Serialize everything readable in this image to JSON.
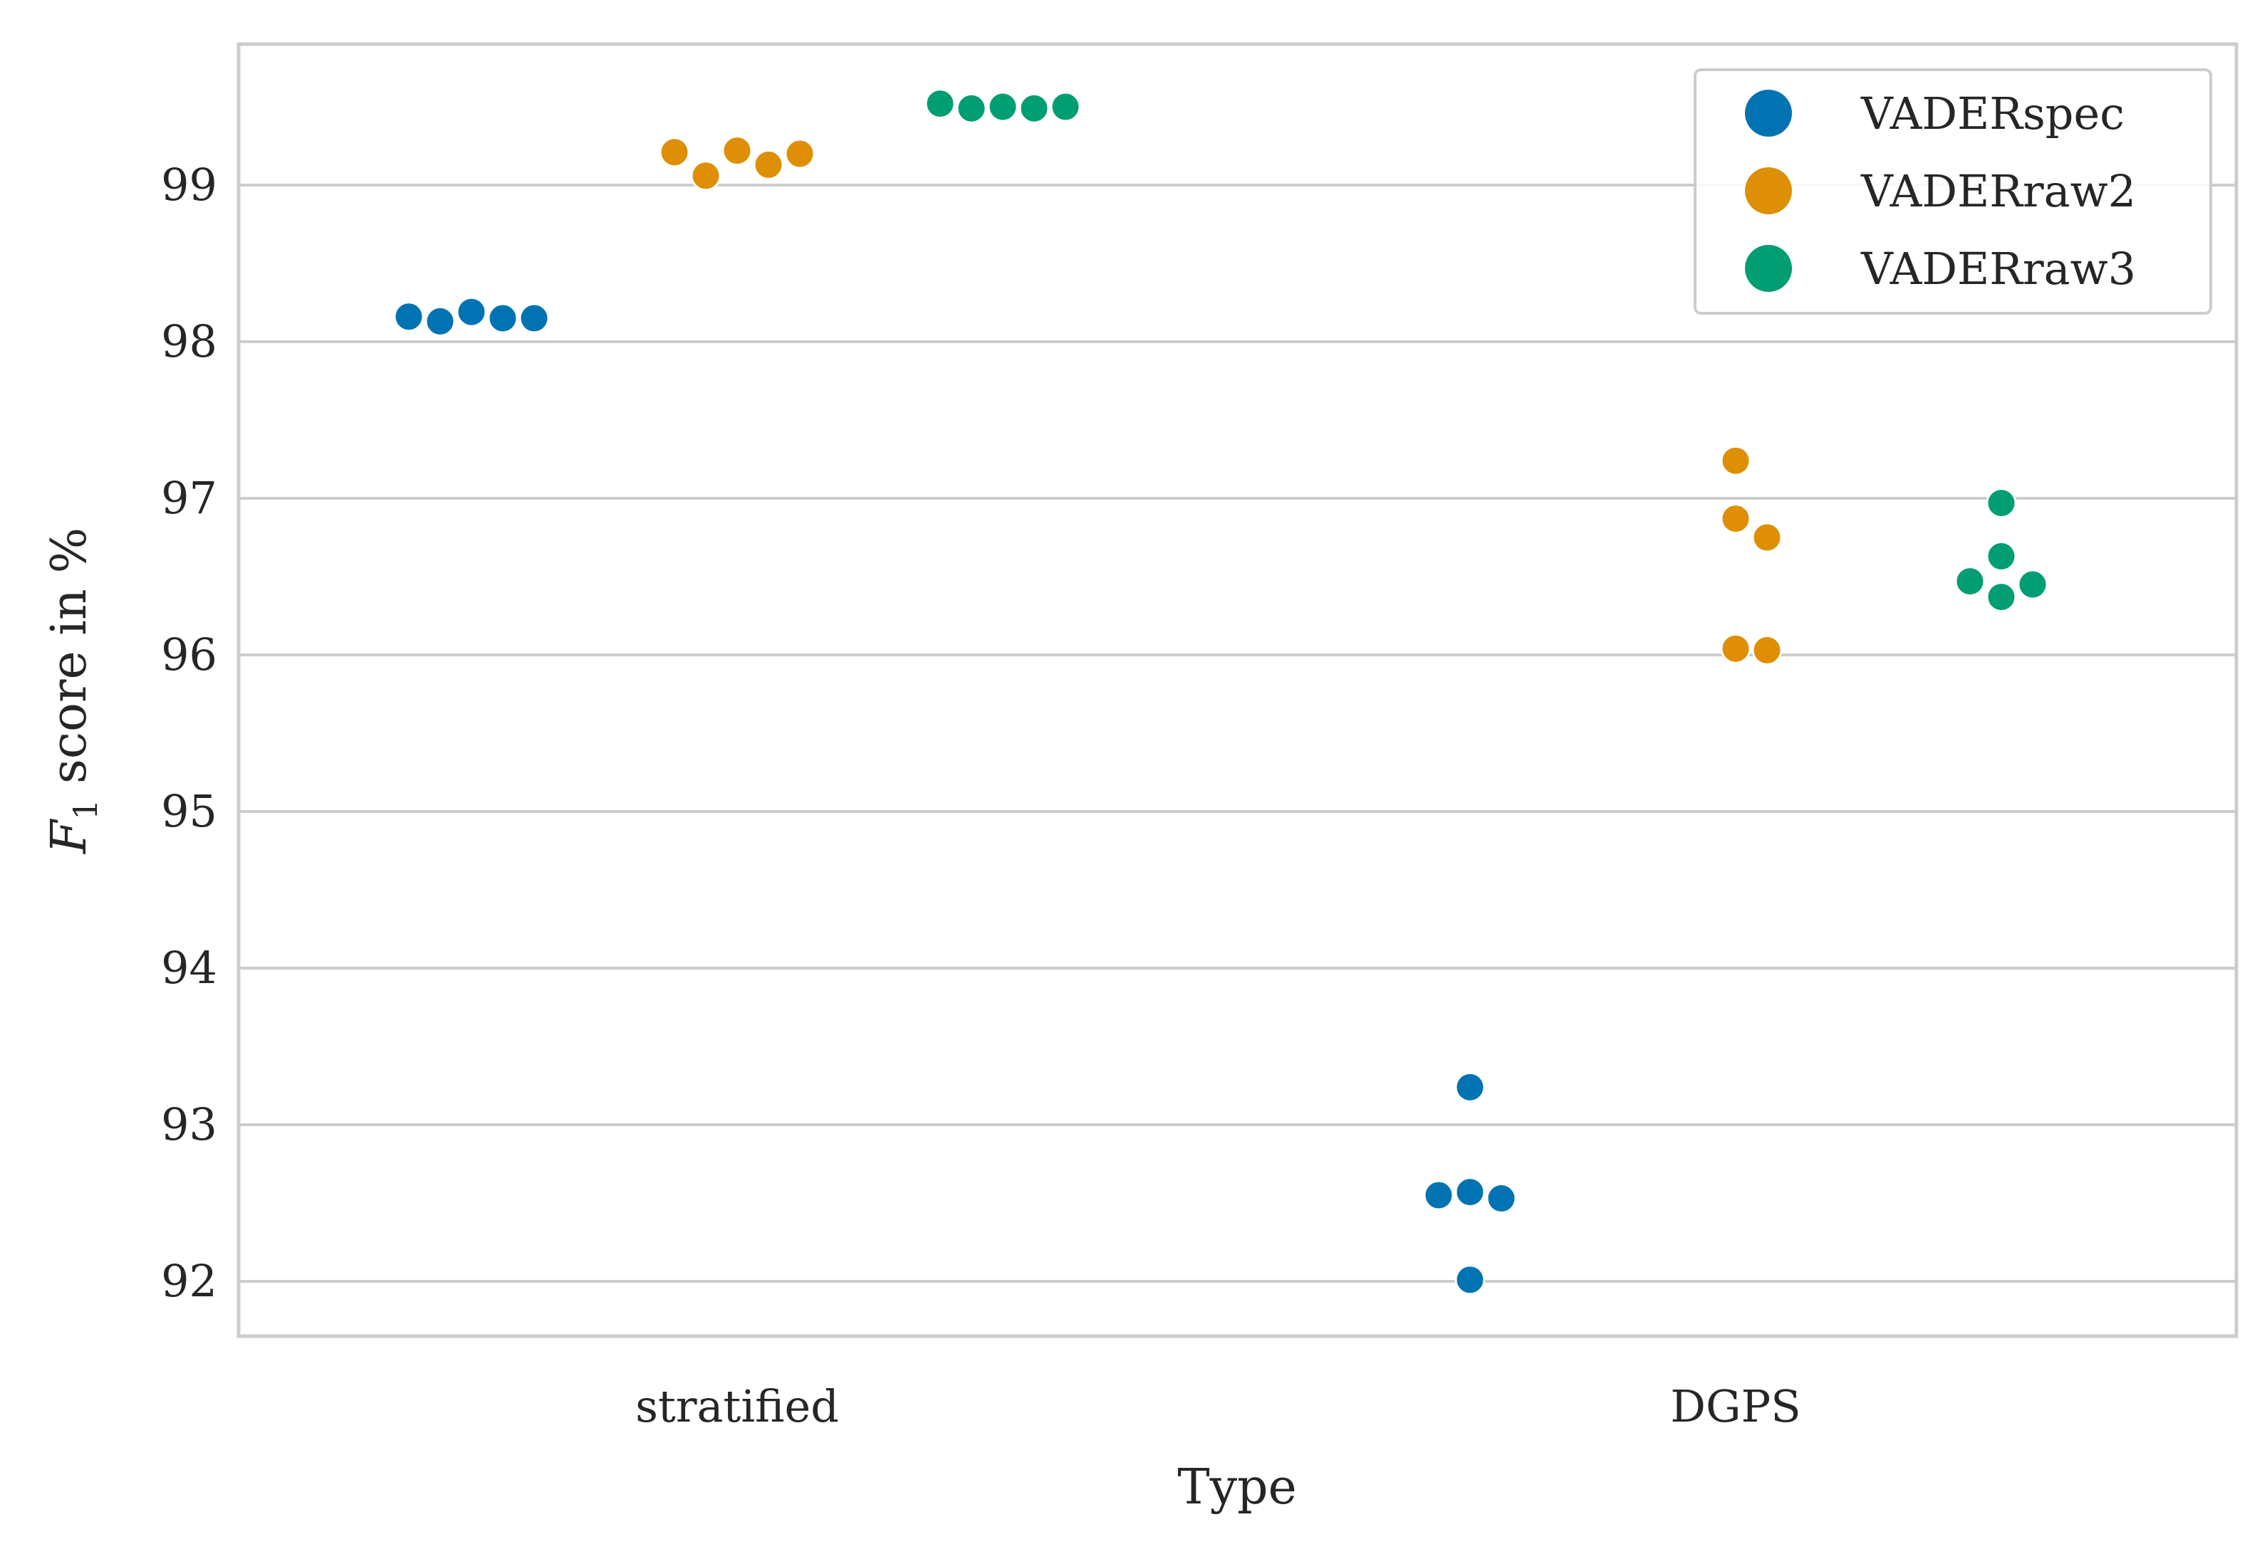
{
  "chart_data": {
    "type": "scatter",
    "subtype": "swarm",
    "xlabel": "Type",
    "ylabel": "F",
    "ylabel_subscript": "1",
    "ylabel_suffix": " score in %",
    "categories": [
      "stratified",
      "DGPS"
    ],
    "ylim": [
      91.65,
      99.9
    ],
    "yticks": [
      92,
      93,
      94,
      95,
      96,
      97,
      98,
      99
    ],
    "grid": "horizontal",
    "legend_position": "top-right",
    "series": [
      {
        "name": "VADERspec",
        "color": "#0173b2",
        "values": {
          "stratified": [
            98.19,
            98.15,
            98.13,
            98.15,
            98.16
          ],
          "DGPS": [
            93.24,
            92.57,
            92.53,
            92.55,
            92.01
          ]
        }
      },
      {
        "name": "VADERraw2",
        "color": "#de8f05",
        "values": {
          "stratified": [
            99.22,
            99.13,
            99.06,
            99.2,
            99.21
          ],
          "DGPS": [
            97.24,
            96.87,
            96.75,
            96.04,
            96.03
          ]
        }
      },
      {
        "name": "VADERraw3",
        "color": "#029e73",
        "values": {
          "stratified": [
            99.5,
            99.49,
            99.49,
            99.5,
            99.52
          ],
          "DGPS": [
            96.97,
            96.63,
            96.45,
            96.47,
            96.37
          ]
        }
      }
    ]
  }
}
